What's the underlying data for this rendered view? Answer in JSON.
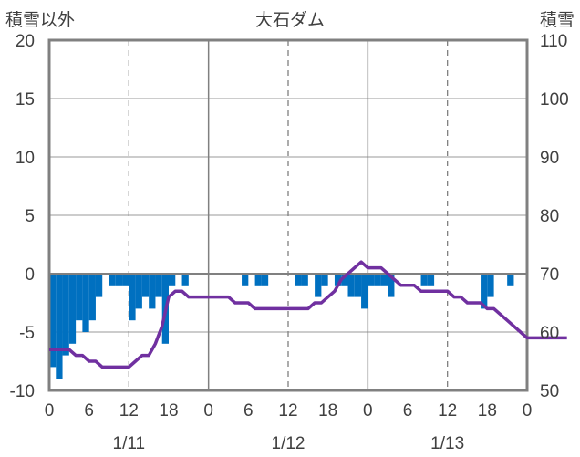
{
  "chart_data": {
    "type": "bar+line",
    "title": "大石ダム",
    "left_axis_label": "積雪以外",
    "right_axis_label": "積雪",
    "y_left": {
      "min": -10,
      "max": 20,
      "ticks": [
        20,
        15,
        10,
        5,
        0,
        -5,
        -10
      ]
    },
    "y_right": {
      "min": 50,
      "max": 110,
      "ticks": [
        110,
        100,
        90,
        80,
        70,
        60,
        50
      ]
    },
    "x_hour_labels": [
      "0",
      "6",
      "12",
      "18",
      "0",
      "6",
      "12",
      "18",
      "0",
      "6",
      "12",
      "18",
      "0"
    ],
    "date_labels": [
      "1/11",
      "1/12",
      "1/13"
    ],
    "grid": true,
    "colors": {
      "bars": "#0070c0",
      "line": "#7030a0",
      "axis": "#808080",
      "grid": "#808080",
      "text": "#404040"
    },
    "series": [
      {
        "type": "bar",
        "axis": "left",
        "x_hours": [
          0,
          1,
          2,
          3,
          4,
          5,
          6,
          7,
          8,
          9,
          10,
          11,
          12,
          13,
          14,
          15,
          16,
          17,
          18,
          19,
          20,
          21,
          22,
          23,
          24,
          25,
          26,
          27,
          28,
          29,
          30,
          31,
          32,
          33,
          34,
          35,
          36,
          37,
          38,
          39,
          40,
          41,
          42,
          43,
          44,
          45,
          46,
          47,
          48,
          49,
          50,
          51,
          52,
          53,
          54,
          55,
          56,
          57,
          58,
          59,
          60,
          61,
          62,
          63,
          64,
          65,
          66,
          67,
          68,
          69,
          70,
          71
        ],
        "values": [
          -8,
          -9,
          -7,
          -6,
          -4,
          -5,
          -4,
          -2,
          0,
          -1,
          -1,
          -1,
          -4,
          -3,
          -2,
          -3,
          -2,
          -6,
          -1,
          0,
          -1,
          0,
          0,
          0,
          0,
          0,
          0,
          0,
          0,
          -1,
          0,
          -1,
          -1,
          0,
          0,
          0,
          0,
          -1,
          -1,
          0,
          -2,
          -1,
          0,
          -1,
          -1,
          -2,
          -2,
          -3,
          -1,
          -1,
          -1,
          -2,
          0,
          0,
          0,
          0,
          -1,
          -1,
          0,
          0,
          0,
          0,
          0,
          0,
          0,
          -3,
          -2,
          0,
          0,
          -1,
          0,
          0
        ]
      },
      {
        "type": "line",
        "axis": "right",
        "points": [
          [
            0,
            57
          ],
          [
            3,
            57
          ],
          [
            4,
            56
          ],
          [
            5,
            56
          ],
          [
            6,
            55
          ],
          [
            7,
            55
          ],
          [
            8,
            54
          ],
          [
            12,
            54
          ],
          [
            13,
            55
          ],
          [
            14,
            56
          ],
          [
            15,
            56
          ],
          [
            16,
            58
          ],
          [
            17,
            61
          ],
          [
            18,
            66
          ],
          [
            19,
            67
          ],
          [
            20,
            67
          ],
          [
            21,
            66
          ],
          [
            27,
            66
          ],
          [
            28,
            65
          ],
          [
            30,
            65
          ],
          [
            31,
            64
          ],
          [
            39,
            64
          ],
          [
            40,
            65
          ],
          [
            41,
            65
          ],
          [
            43,
            67
          ],
          [
            44,
            69
          ],
          [
            45,
            70
          ],
          [
            46,
            71
          ],
          [
            47,
            72
          ],
          [
            48,
            71
          ],
          [
            50,
            71
          ],
          [
            51,
            70
          ],
          [
            52,
            69
          ],
          [
            53,
            68
          ],
          [
            55,
            68
          ],
          [
            56,
            67
          ],
          [
            60,
            67
          ],
          [
            61,
            66
          ],
          [
            62,
            66
          ],
          [
            63,
            65
          ],
          [
            65,
            65
          ],
          [
            66,
            64
          ],
          [
            67,
            64
          ],
          [
            68,
            63
          ],
          [
            69,
            62
          ],
          [
            70,
            61
          ],
          [
            71,
            60
          ],
          [
            72,
            59
          ],
          [
            73,
            59
          ],
          [
            75,
            59
          ],
          [
            78,
            59
          ]
        ]
      }
    ]
  }
}
